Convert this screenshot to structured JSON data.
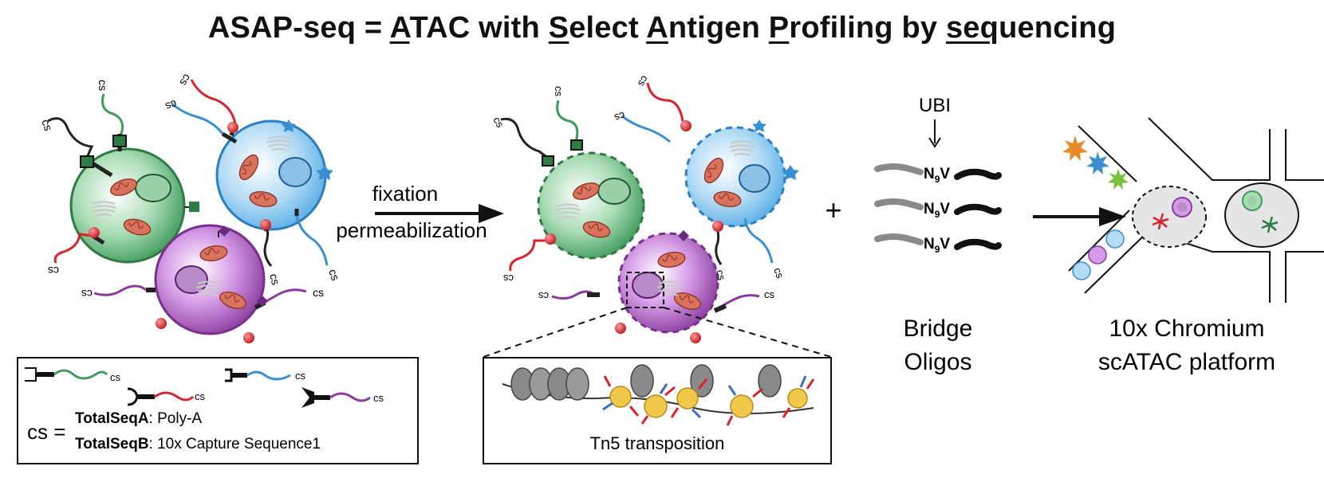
{
  "title": {
    "parts": [
      {
        "text": "ASAP-seq = ",
        "u": false
      },
      {
        "text": "A",
        "u": true
      },
      {
        "text": "TAC with ",
        "u": false
      },
      {
        "text": "S",
        "u": true
      },
      {
        "text": "elect ",
        "u": false
      },
      {
        "text": "A",
        "u": true
      },
      {
        "text": "ntigen ",
        "u": false
      },
      {
        "text": "P",
        "u": true
      },
      {
        "text": "rofiling by ",
        "u": false
      },
      {
        "text": "seq",
        "u": true
      },
      {
        "text": "uencing",
        "u": false
      }
    ]
  },
  "labels": {
    "cs": "cs",
    "fixation": "fixation",
    "permeabilization": "permeabilization",
    "plus": "+",
    "ubi": "UBI",
    "n9v_n": "N",
    "n9v_sub": "9",
    "n9v_v": "V",
    "bridge_line1": "Bridge",
    "bridge_line2": "Oligos",
    "chromium_line1": "10x Chromium",
    "chromium_line2": "scATAC platform",
    "tn5": "Tn5 transposition"
  },
  "legend": {
    "cs_eq": "cs =",
    "a_bold": "TotalSeqA",
    "a_rest": ": Poly-A",
    "b_bold": "TotalSeqB",
    "b_rest": ": 10x Capture Sequence1"
  },
  "colors": {
    "green": "#3f9a5c",
    "blue": "#3a8fd0",
    "purple": "#8a3c9e",
    "red": "#d3262e",
    "gold": "#f0c84a",
    "nucleosome": "#8a8a8a",
    "droplet": "#e6e6e6"
  }
}
